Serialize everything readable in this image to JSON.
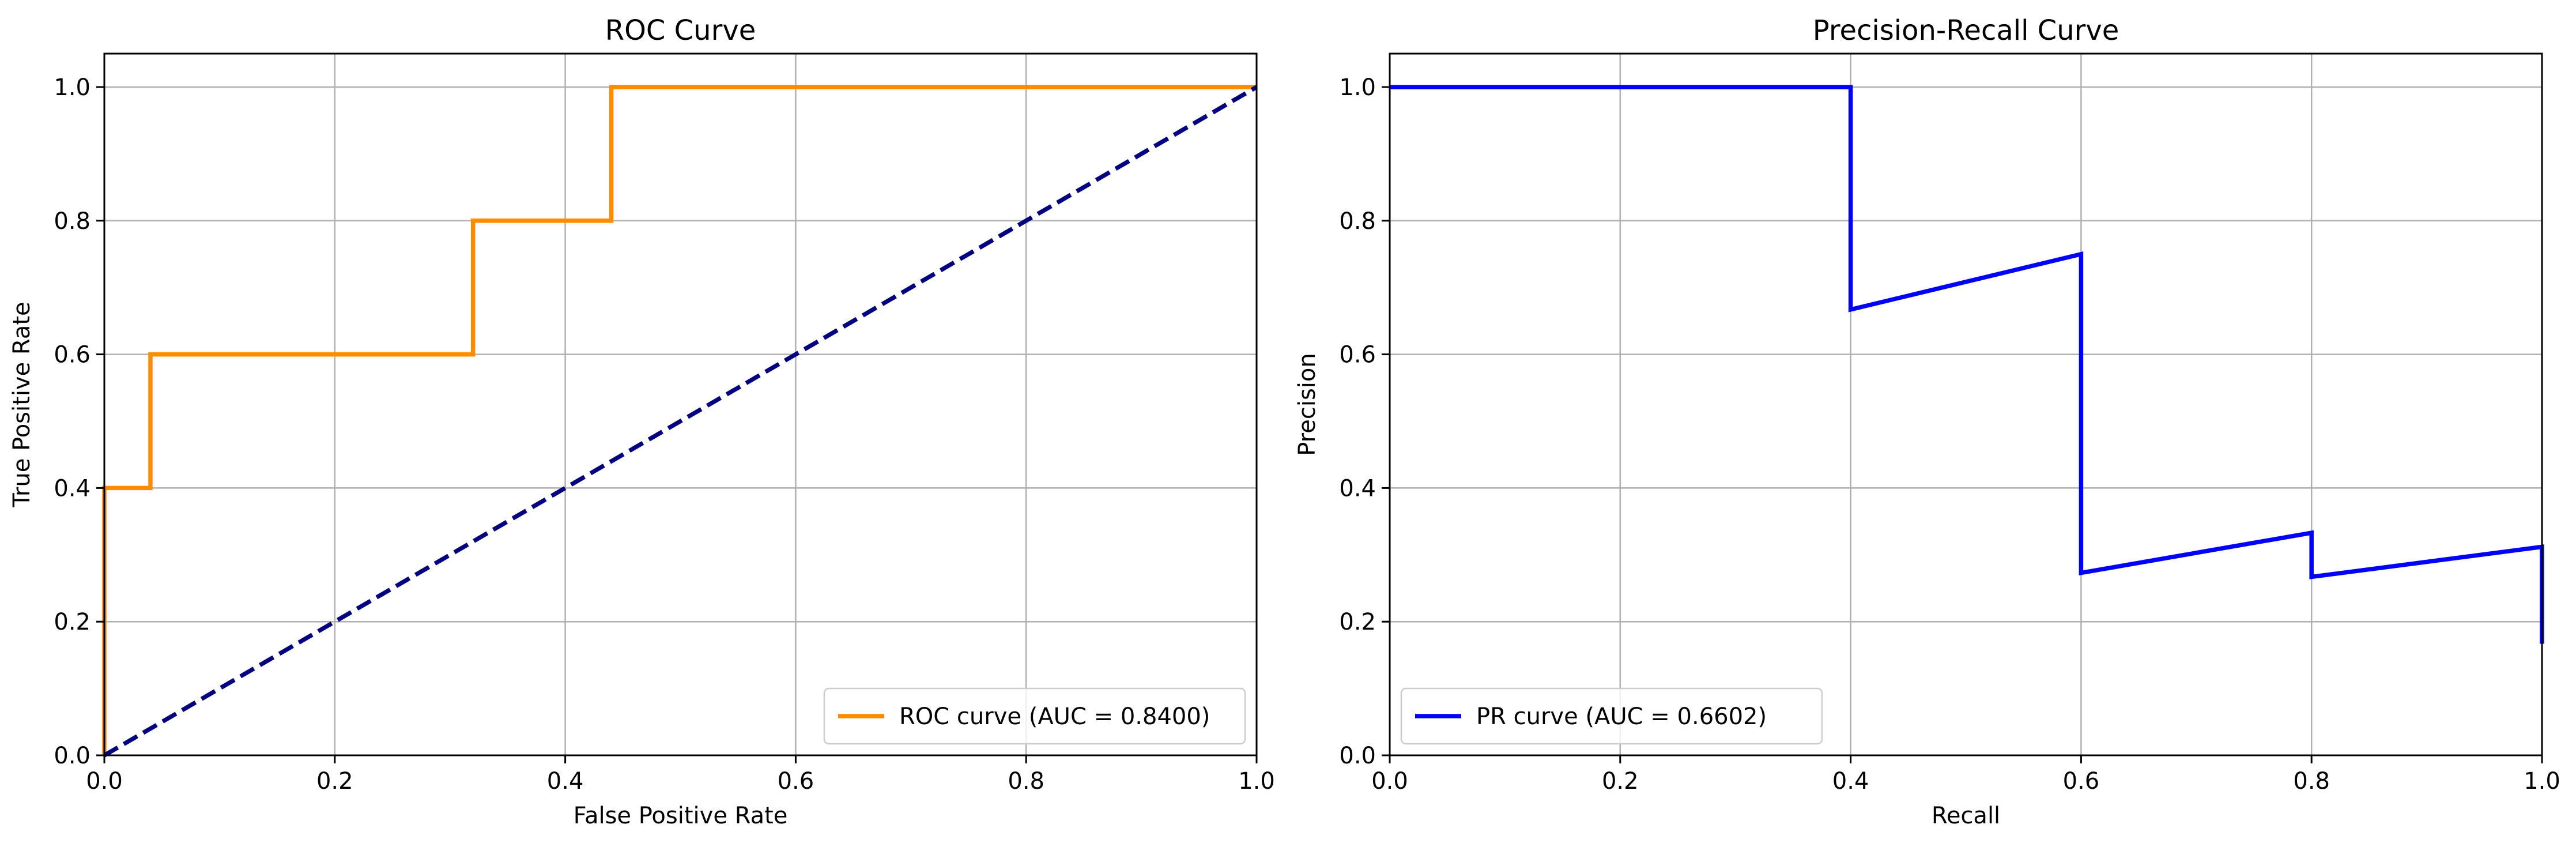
{
  "chart_data": [
    {
      "type": "line",
      "title": "ROC Curve",
      "xlabel": "False Positive Rate",
      "ylabel": "True Positive Rate",
      "xlim": [
        0,
        1
      ],
      "ylim": [
        0,
        1.05
      ],
      "xticks": [
        "0.0",
        "0.2",
        "0.4",
        "0.6",
        "0.8",
        "1.0"
      ],
      "yticks": [
        "0.0",
        "0.2",
        "0.4",
        "0.6",
        "0.8",
        "1.0"
      ],
      "grid": true,
      "legend_position": "lower-right",
      "series": [
        {
          "name": "ROC curve (AUC = 0.8400)",
          "color": "#ff8c00",
          "dash": "solid",
          "points": [
            [
              0,
              0
            ],
            [
              0,
              0.4
            ],
            [
              0.04,
              0.4
            ],
            [
              0.04,
              0.6
            ],
            [
              0.32,
              0.6
            ],
            [
              0.32,
              0.8
            ],
            [
              0.44,
              0.8
            ],
            [
              0.44,
              1.0
            ],
            [
              1.0,
              1.0
            ]
          ]
        },
        {
          "color": "#000080",
          "dash": "dashed",
          "points": [
            [
              0,
              0
            ],
            [
              1,
              1
            ]
          ]
        }
      ]
    },
    {
      "type": "line",
      "title": "Precision-Recall Curve",
      "xlabel": "Recall",
      "ylabel": "Precision",
      "xlim": [
        0,
        1
      ],
      "ylim": [
        0,
        1.05
      ],
      "xticks": [
        "0.0",
        "0.2",
        "0.4",
        "0.6",
        "0.8",
        "1.0"
      ],
      "yticks": [
        "0.0",
        "0.2",
        "0.4",
        "0.6",
        "0.8",
        "1.0"
      ],
      "grid": true,
      "legend_position": "lower-left",
      "series": [
        {
          "name": "PR curve (AUC = 0.6602)",
          "color": "#0000ff",
          "dash": "solid",
          "points": [
            [
              0,
              1.0
            ],
            [
              0.4,
              1.0
            ],
            [
              0.4,
              0.667
            ],
            [
              0.6,
              0.75
            ],
            [
              0.6,
              0.273
            ],
            [
              0.8,
              0.333
            ],
            [
              0.8,
              0.267
            ],
            [
              1.0,
              0.312
            ],
            [
              1.0,
              0.167
            ]
          ]
        }
      ]
    }
  ]
}
